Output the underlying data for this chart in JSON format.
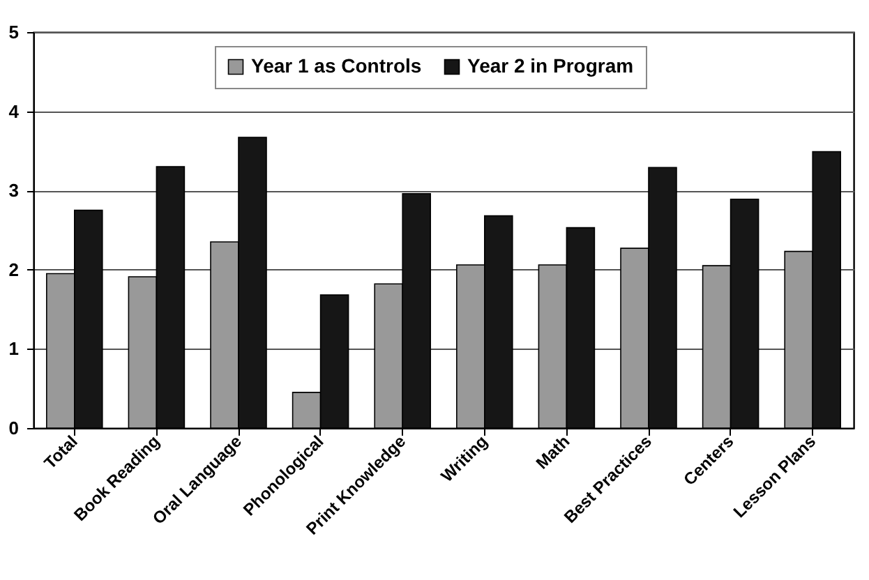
{
  "chart_data": {
    "type": "bar",
    "categories": [
      "Total",
      "Book Reading",
      "Oral Language",
      "Phonological",
      "Print Knowledge",
      "Writing",
      "Math",
      "Best Practices",
      "Centers",
      "Lesson Plans"
    ],
    "series": [
      {
        "name": "Year 1 as Controls",
        "color": "#999999",
        "values": [
          1.95,
          1.91,
          2.35,
          0.45,
          1.82,
          2.06,
          2.06,
          2.27,
          2.05,
          2.23
        ]
      },
      {
        "name": "Year 2 in Program",
        "color": "#161616",
        "values": [
          2.75,
          3.3,
          3.67,
          1.68,
          2.96,
          2.68,
          2.53,
          3.29,
          2.89,
          3.49
        ]
      }
    ],
    "ylim": [
      0,
      5
    ],
    "yticks": [
      0,
      1,
      2,
      3,
      4,
      5
    ],
    "grid": "y",
    "legend": "top"
  }
}
